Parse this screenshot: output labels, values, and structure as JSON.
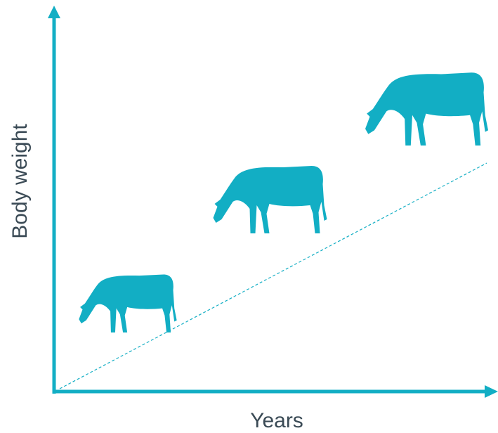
{
  "axes": {
    "y_label": "Body weight",
    "x_label": "Years"
  }
}
